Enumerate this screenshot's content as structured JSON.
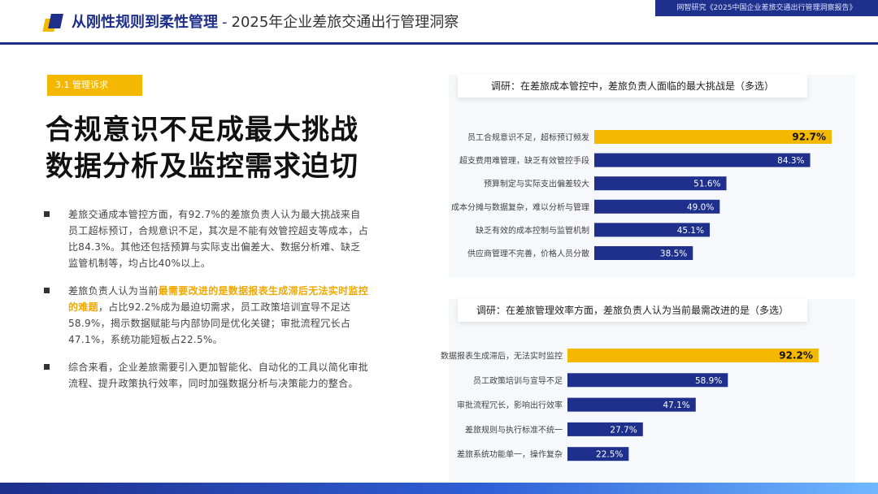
{
  "header": {
    "title_bold": "从刚性规则到柔性管理",
    "separator": "-",
    "title_sub": "2025年企业差旅交通出行管理洞察",
    "report_tag": "网智研究《2025中国企业差旅交通出行管理洞察报告》"
  },
  "section_tag": "3.1 管理诉求",
  "main_title": {
    "line1": "合规意识不足成最大挑战",
    "line2": "数据分析及监控需求迫切"
  },
  "bullets": [
    {
      "text": "差旅交通成本管控方面，有92.7%的差旅负责人认为最大挑战来自员工超标预订，合规意识不足，其次是不能有效管控超支等成本，占比84.3%。其他还包括预算与实际支出偏差大、数据分析难、缺乏监管机制等，均占比40%以上。"
    },
    {
      "pre": "差旅负责人认为当前",
      "highlight": "最需要改进的是数据报表生成滞后无法实时监控的难题",
      "post": "，占比92.2%成为最迫切需求，员工政策培训宣导不足达58.9%，揭示数据赋能与内部协同是优化关键；审批流程冗长占47.1%，系统功能短板占22.5%。"
    },
    {
      "text": "综合来看，企业差旅需要引入更加智能化、自动化的工具以简化审批流程、提升政策执行效率，同时加强数据分析与决策能力的整合。"
    }
  ],
  "colors": {
    "navy": "#1e2f8c",
    "yellow": "#f5b800",
    "highlight_text": "#f0a800"
  },
  "chart_data": [
    {
      "type": "bar",
      "orientation": "horizontal",
      "title": "调研：在差旅成本管控中，差旅负责人面临的最大挑战是（多选）",
      "categories": [
        "员工合规意识不足，超标预订频发",
        "超支费用难管理，缺乏有效管控手段",
        "预算制定与实际支出偏差较大",
        "成本分摊与数据复杂，难以分析与管理",
        "缺乏有效的成本控制与监管机制",
        "供应商管理不完善，价格人员分散"
      ],
      "values": [
        92.7,
        84.3,
        51.6,
        49.0,
        45.1,
        38.5
      ],
      "value_labels": [
        "92.7%",
        "84.3%",
        "51.6%",
        "49.0%",
        "45.1%",
        "38.5%"
      ],
      "xlim": [
        0,
        100
      ],
      "highlight_index": 0
    },
    {
      "type": "bar",
      "orientation": "horizontal",
      "title": "调研：在差旅管理效率方面，差旅负责人认为当前最需改进的是（多选）",
      "categories": [
        "数据报表生成滞后，无法实时监控",
        "员工政策培训与宣导不足",
        "审批流程冗长，影响出行效率",
        "差旅规则与执行标准不统一",
        "差旅系统功能单一，操作复杂"
      ],
      "values": [
        92.2,
        58.9,
        47.1,
        27.7,
        22.5
      ],
      "value_labels": [
        "92.2%",
        "58.9%",
        "47.1%",
        "27.7%",
        "22.5%"
      ],
      "xlim": [
        0,
        100
      ],
      "highlight_index": 0
    }
  ]
}
